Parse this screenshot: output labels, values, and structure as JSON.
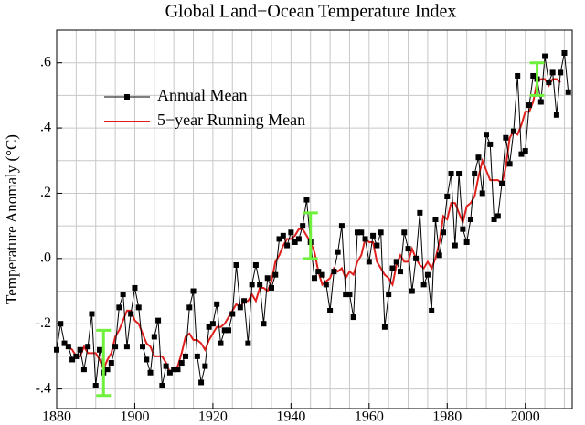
{
  "chart_data": {
    "type": "line",
    "title": "Global Land−Ocean Temperature Index",
    "ylabel": "Temperature Anomaly (°C)",
    "xlim": [
      1880,
      2012
    ],
    "ylim": [
      -0.46,
      0.7
    ],
    "xticks": [
      1880,
      1900,
      1920,
      1940,
      1960,
      1980,
      2000
    ],
    "yticks": [
      {
        "value": -0.4,
        "label": "-.4"
      },
      {
        "value": -0.2,
        "label": "-.2"
      },
      {
        "value": 0,
        "label": ".0"
      },
      {
        "value": 0.2,
        "label": ".2"
      },
      {
        "value": 0.4,
        "label": ".4"
      },
      {
        "value": 0.6,
        "label": ".6"
      }
    ],
    "xgrid": [
      1885,
      1890,
      1895,
      1905,
      1910,
      1915,
      1925,
      1930,
      1935,
      1945,
      1950,
      1955,
      1965,
      1970,
      1975,
      1985,
      1990,
      1995,
      2005,
      2010
    ],
    "ygrid": [
      -0.3,
      -0.1,
      0.1,
      0.3,
      0.5
    ],
    "grid": true,
    "legend": "upper left",
    "x": [
      1880,
      1881,
      1882,
      1883,
      1884,
      1885,
      1886,
      1887,
      1888,
      1889,
      1890,
      1891,
      1892,
      1893,
      1894,
      1895,
      1896,
      1897,
      1898,
      1899,
      1900,
      1901,
      1902,
      1903,
      1904,
      1905,
      1906,
      1907,
      1908,
      1909,
      1910,
      1911,
      1912,
      1913,
      1914,
      1915,
      1916,
      1917,
      1918,
      1919,
      1920,
      1921,
      1922,
      1923,
      1924,
      1925,
      1926,
      1927,
      1928,
      1929,
      1930,
      1931,
      1932,
      1933,
      1934,
      1935,
      1936,
      1937,
      1938,
      1939,
      1940,
      1941,
      1942,
      1943,
      1944,
      1945,
      1946,
      1947,
      1948,
      1949,
      1950,
      1951,
      1952,
      1953,
      1954,
      1955,
      1956,
      1957,
      1958,
      1959,
      1960,
      1961,
      1962,
      1963,
      1964,
      1965,
      1966,
      1967,
      1968,
      1969,
      1970,
      1971,
      1972,
      1973,
      1974,
      1975,
      1976,
      1977,
      1978,
      1979,
      1980,
      1981,
      1982,
      1983,
      1984,
      1985,
      1986,
      1987,
      1988,
      1989,
      1990,
      1991,
      1992,
      1993,
      1994,
      1995,
      1996,
      1997,
      1998,
      1999,
      2000,
      2001,
      2002,
      2003,
      2004,
      2005,
      2006,
      2007,
      2008,
      2009,
      2010,
      2011
    ],
    "series": [
      {
        "name": "Annual Mean",
        "color": "#000000",
        "marker": "square",
        "values": [
          -0.28,
          -0.2,
          -0.26,
          -0.27,
          -0.31,
          -0.3,
          -0.28,
          -0.34,
          -0.27,
          -0.17,
          -0.39,
          -0.28,
          -0.35,
          -0.34,
          -0.32,
          -0.27,
          -0.15,
          -0.11,
          -0.27,
          -0.17,
          -0.09,
          -0.15,
          -0.27,
          -0.31,
          -0.35,
          -0.24,
          -0.19,
          -0.39,
          -0.33,
          -0.35,
          -0.34,
          -0.34,
          -0.32,
          -0.3,
          -0.15,
          -0.1,
          -0.3,
          -0.38,
          -0.33,
          -0.21,
          -0.2,
          -0.14,
          -0.26,
          -0.22,
          -0.22,
          -0.17,
          -0.02,
          -0.15,
          -0.13,
          -0.26,
          -0.08,
          -0.02,
          -0.08,
          -0.2,
          -0.06,
          -0.09,
          -0.05,
          0.06,
          0.07,
          0.04,
          0.08,
          0.05,
          0.06,
          0.1,
          0.18,
          0.05,
          -0.06,
          -0.04,
          -0.05,
          -0.08,
          -0.16,
          -0.04,
          0.02,
          0.1,
          -0.11,
          -0.11,
          -0.18,
          0.08,
          0.08,
          0.06,
          -0.01,
          0.07,
          0.04,
          0.08,
          -0.21,
          -0.11,
          -0.03,
          -0.01,
          -0.04,
          0.08,
          0.03,
          -0.1,
          0.0,
          0.14,
          -0.08,
          -0.05,
          -0.16,
          0.12,
          0.01,
          0.08,
          0.19,
          0.26,
          0.04,
          0.26,
          0.09,
          0.05,
          0.12,
          0.26,
          0.31,
          0.2,
          0.38,
          0.35,
          0.12,
          0.13,
          0.23,
          0.37,
          0.29,
          0.39,
          0.56,
          0.32,
          0.33,
          0.47,
          0.56,
          0.55,
          0.48,
          0.62,
          0.54,
          0.57,
          0.44,
          0.57,
          0.63,
          0.51
        ]
      },
      {
        "name": "5−year Running Mean",
        "color": "#e0201c",
        "values": [
          null,
          null,
          -0.26,
          -0.27,
          -0.28,
          -0.3,
          -0.3,
          -0.27,
          -0.29,
          -0.29,
          -0.29,
          -0.31,
          -0.34,
          -0.31,
          -0.29,
          -0.24,
          -0.22,
          -0.19,
          -0.16,
          -0.16,
          -0.19,
          -0.2,
          -0.23,
          -0.26,
          -0.27,
          -0.3,
          -0.3,
          -0.3,
          -0.32,
          -0.35,
          -0.34,
          -0.33,
          -0.29,
          -0.24,
          -0.23,
          -0.25,
          -0.25,
          -0.26,
          -0.28,
          -0.25,
          -0.23,
          -0.21,
          -0.21,
          -0.2,
          -0.18,
          -0.16,
          -0.14,
          -0.15,
          -0.13,
          -0.13,
          -0.11,
          -0.13,
          -0.09,
          -0.09,
          -0.1,
          -0.07,
          -0.01,
          0.01,
          0.04,
          0.06,
          0.06,
          0.07,
          0.09,
          0.09,
          0.07,
          0.05,
          0.02,
          -0.04,
          -0.08,
          -0.07,
          -0.06,
          -0.03,
          -0.04,
          -0.03,
          -0.06,
          -0.04,
          -0.05,
          -0.01,
          0.01,
          0.06,
          0.05,
          0.05,
          -0.01,
          -0.03,
          -0.05,
          -0.06,
          -0.08,
          -0.02,
          0.01,
          -0.01,
          -0.01,
          0.03,
          0.0,
          -0.02,
          -0.03,
          -0.01,
          -0.03,
          0.0,
          0.05,
          0.13,
          0.12,
          0.17,
          0.17,
          0.14,
          0.11,
          0.16,
          0.17,
          0.19,
          0.25,
          0.3,
          0.27,
          0.24,
          0.24,
          0.24,
          0.23,
          0.28,
          0.37,
          0.39,
          0.38,
          0.41,
          0.45,
          0.45,
          0.48,
          0.54,
          0.55,
          0.55,
          0.53,
          0.55,
          0.55,
          0.54,
          null,
          null
        ]
      }
    ],
    "uncertainty": {
      "color": "#6ef03c",
      "x": [
        1892,
        1945,
        2003
      ],
      "values": [
        -0.32,
        0.07,
        0.55
      ],
      "errors": [
        0.1,
        0.07,
        0.05
      ]
    }
  }
}
